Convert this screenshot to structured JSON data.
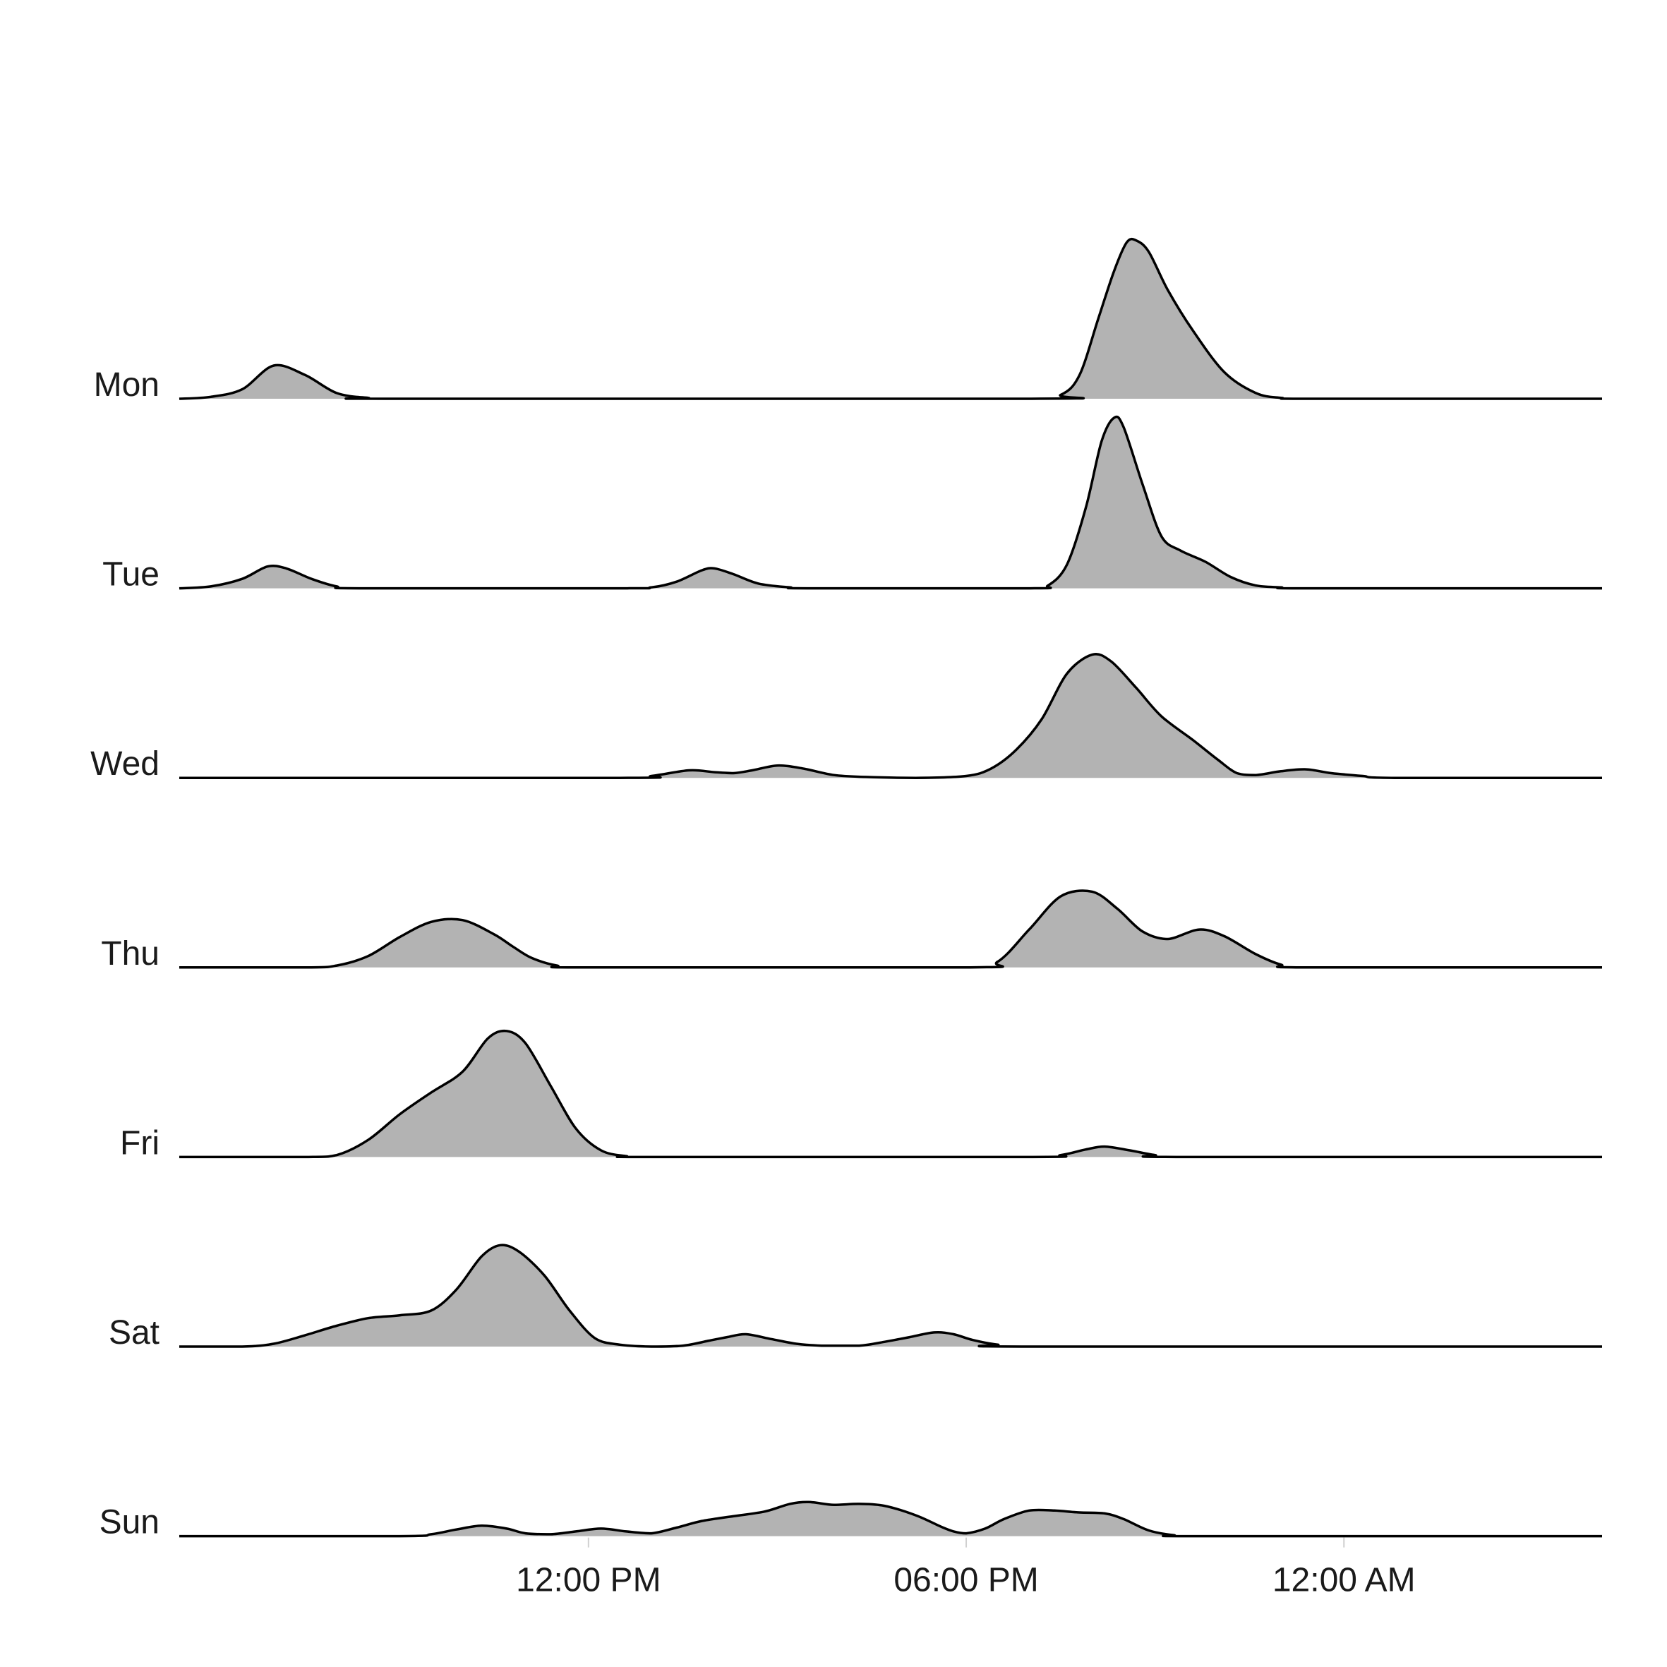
{
  "chart_data": {
    "type": "ridgeline",
    "x_unit": "hour of day",
    "xlim": [
      5.5,
      28.1
    ],
    "x_ticks": [
      {
        "value": 12,
        "label": "12:00 PM"
      },
      {
        "value": 18,
        "label": "06:00 PM"
      },
      {
        "value": 24,
        "label": "12:00 AM"
      }
    ],
    "fill_color": "#b3b3b3",
    "line_color": "#000000",
    "scale": 2.0,
    "series": [
      {
        "name": "Mon",
        "points": [
          [
            5.5,
            0
          ],
          [
            6.0,
            0.02
          ],
          [
            6.5,
            0.1
          ],
          [
            7.0,
            0.35
          ],
          [
            7.5,
            0.25
          ],
          [
            8.0,
            0.06
          ],
          [
            8.5,
            0.01
          ],
          [
            9.0,
            0
          ],
          [
            19.0,
            0
          ],
          [
            19.5,
            0.04
          ],
          [
            19.8,
            0.25
          ],
          [
            20.1,
            0.85
          ],
          [
            20.35,
            1.35
          ],
          [
            20.55,
            1.65
          ],
          [
            20.7,
            1.67
          ],
          [
            20.9,
            1.55
          ],
          [
            21.2,
            1.15
          ],
          [
            21.6,
            0.72
          ],
          [
            22.1,
            0.28
          ],
          [
            22.6,
            0.06
          ],
          [
            23.0,
            0.01
          ],
          [
            23.5,
            0
          ],
          [
            28.1,
            0
          ]
        ]
      },
      {
        "name": "Tue",
        "points": [
          [
            5.5,
            0
          ],
          [
            6.0,
            0.02
          ],
          [
            6.5,
            0.1
          ],
          [
            6.9,
            0.23
          ],
          [
            7.2,
            0.21
          ],
          [
            7.6,
            0.1
          ],
          [
            8.0,
            0.02
          ],
          [
            8.4,
            0
          ],
          [
            12.5,
            0
          ],
          [
            13.0,
            0.01
          ],
          [
            13.4,
            0.07
          ],
          [
            13.8,
            0.19
          ],
          [
            14.0,
            0.21
          ],
          [
            14.3,
            0.15
          ],
          [
            14.7,
            0.05
          ],
          [
            15.2,
            0.01
          ],
          [
            15.5,
            0
          ],
          [
            19.0,
            0
          ],
          [
            19.3,
            0.03
          ],
          [
            19.6,
            0.25
          ],
          [
            19.9,
            0.85
          ],
          [
            20.15,
            1.55
          ],
          [
            20.35,
            1.8
          ],
          [
            20.5,
            1.7
          ],
          [
            20.8,
            1.1
          ],
          [
            21.1,
            0.55
          ],
          [
            21.4,
            0.4
          ],
          [
            21.8,
            0.28
          ],
          [
            22.2,
            0.12
          ],
          [
            22.6,
            0.03
          ],
          [
            23.0,
            0.01
          ],
          [
            23.4,
            0
          ],
          [
            28.1,
            0
          ]
        ]
      },
      {
        "name": "Wed",
        "points": [
          [
            5.5,
            0
          ],
          [
            12.5,
            0
          ],
          [
            13.0,
            0.02
          ],
          [
            13.6,
            0.08
          ],
          [
            14.0,
            0.06
          ],
          [
            14.3,
            0.05
          ],
          [
            14.6,
            0.08
          ],
          [
            15.0,
            0.13
          ],
          [
            15.4,
            0.1
          ],
          [
            15.9,
            0.03
          ],
          [
            16.4,
            0.01
          ],
          [
            17.2,
            0
          ],
          [
            18.0,
            0.02
          ],
          [
            18.4,
            0.1
          ],
          [
            18.8,
            0.3
          ],
          [
            19.2,
            0.62
          ],
          [
            19.6,
            1.1
          ],
          [
            20.0,
            1.3
          ],
          [
            20.3,
            1.23
          ],
          [
            20.7,
            0.95
          ],
          [
            21.1,
            0.65
          ],
          [
            21.6,
            0.4
          ],
          [
            22.0,
            0.19
          ],
          [
            22.3,
            0.05
          ],
          [
            22.6,
            0.03
          ],
          [
            23.0,
            0.07
          ],
          [
            23.4,
            0.09
          ],
          [
            23.8,
            0.05
          ],
          [
            24.3,
            0.02
          ],
          [
            24.8,
            0
          ],
          [
            28.1,
            0
          ]
        ]
      },
      {
        "name": "Thu",
        "points": [
          [
            5.5,
            0
          ],
          [
            7.5,
            0
          ],
          [
            8.0,
            0.02
          ],
          [
            8.5,
            0.12
          ],
          [
            9.0,
            0.32
          ],
          [
            9.5,
            0.48
          ],
          [
            10.0,
            0.5
          ],
          [
            10.5,
            0.35
          ],
          [
            10.8,
            0.22
          ],
          [
            11.1,
            0.1
          ],
          [
            11.5,
            0.02
          ],
          [
            12.0,
            0
          ],
          [
            18.0,
            0
          ],
          [
            18.5,
            0.06
          ],
          [
            19.0,
            0.4
          ],
          [
            19.5,
            0.75
          ],
          [
            20.0,
            0.8
          ],
          [
            20.4,
            0.62
          ],
          [
            20.8,
            0.38
          ],
          [
            21.2,
            0.3
          ],
          [
            21.7,
            0.4
          ],
          [
            22.1,
            0.33
          ],
          [
            22.6,
            0.14
          ],
          [
            23.0,
            0.03
          ],
          [
            23.4,
            0
          ],
          [
            28.1,
            0
          ]
        ]
      },
      {
        "name": "Fri",
        "points": [
          [
            5.5,
            0
          ],
          [
            7.5,
            0
          ],
          [
            8.0,
            0.02
          ],
          [
            8.5,
            0.18
          ],
          [
            9.0,
            0.45
          ],
          [
            9.5,
            0.68
          ],
          [
            10.0,
            0.9
          ],
          [
            10.4,
            1.25
          ],
          [
            10.7,
            1.33
          ],
          [
            11.0,
            1.2
          ],
          [
            11.4,
            0.75
          ],
          [
            11.8,
            0.3
          ],
          [
            12.2,
            0.07
          ],
          [
            12.6,
            0.01
          ],
          [
            13.0,
            0
          ],
          [
            19.0,
            0
          ],
          [
            19.5,
            0.02
          ],
          [
            19.9,
            0.08
          ],
          [
            20.2,
            0.11
          ],
          [
            20.6,
            0.07
          ],
          [
            21.0,
            0.02
          ],
          [
            21.4,
            0
          ],
          [
            28.1,
            0
          ]
        ]
      },
      {
        "name": "Sat",
        "points": [
          [
            5.5,
            0
          ],
          [
            6.5,
            0
          ],
          [
            7.0,
            0.03
          ],
          [
            7.5,
            0.12
          ],
          [
            8.0,
            0.22
          ],
          [
            8.5,
            0.3
          ],
          [
            9.0,
            0.33
          ],
          [
            9.5,
            0.38
          ],
          [
            9.9,
            0.6
          ],
          [
            10.3,
            0.95
          ],
          [
            10.6,
            1.07
          ],
          [
            10.9,
            1.0
          ],
          [
            11.3,
            0.75
          ],
          [
            11.7,
            0.38
          ],
          [
            12.1,
            0.09
          ],
          [
            12.5,
            0.02
          ],
          [
            13.0,
            0
          ],
          [
            13.5,
            0.01
          ],
          [
            13.9,
            0.06
          ],
          [
            14.2,
            0.1
          ],
          [
            14.5,
            0.13
          ],
          [
            14.9,
            0.08
          ],
          [
            15.3,
            0.03
          ],
          [
            15.7,
            0.01
          ],
          [
            16.3,
            0.01
          ],
          [
            16.7,
            0.05
          ],
          [
            17.1,
            0.1
          ],
          [
            17.5,
            0.15
          ],
          [
            17.8,
            0.13
          ],
          [
            18.1,
            0.07
          ],
          [
            18.5,
            0.02
          ],
          [
            19.0,
            0
          ],
          [
            28.1,
            0
          ]
        ]
      },
      {
        "name": "Sun",
        "points": [
          [
            5.5,
            0
          ],
          [
            9.0,
            0
          ],
          [
            9.5,
            0.02
          ],
          [
            9.9,
            0.07
          ],
          [
            10.3,
            0.11
          ],
          [
            10.7,
            0.08
          ],
          [
            11.0,
            0.03
          ],
          [
            11.4,
            0.02
          ],
          [
            11.8,
            0.05
          ],
          [
            12.2,
            0.08
          ],
          [
            12.6,
            0.05
          ],
          [
            13.0,
            0.03
          ],
          [
            13.4,
            0.09
          ],
          [
            13.8,
            0.16
          ],
          [
            14.3,
            0.21
          ],
          [
            14.8,
            0.26
          ],
          [
            15.2,
            0.34
          ],
          [
            15.5,
            0.36
          ],
          [
            15.9,
            0.33
          ],
          [
            16.3,
            0.34
          ],
          [
            16.7,
            0.32
          ],
          [
            17.2,
            0.22
          ],
          [
            17.6,
            0.1
          ],
          [
            17.8,
            0.05
          ],
          [
            18.0,
            0.03
          ],
          [
            18.3,
            0.08
          ],
          [
            18.6,
            0.18
          ],
          [
            19.0,
            0.27
          ],
          [
            19.4,
            0.27
          ],
          [
            19.8,
            0.25
          ],
          [
            20.2,
            0.24
          ],
          [
            20.5,
            0.18
          ],
          [
            20.9,
            0.06
          ],
          [
            21.3,
            0.01
          ],
          [
            21.7,
            0
          ],
          [
            28.1,
            0
          ]
        ]
      }
    ]
  }
}
